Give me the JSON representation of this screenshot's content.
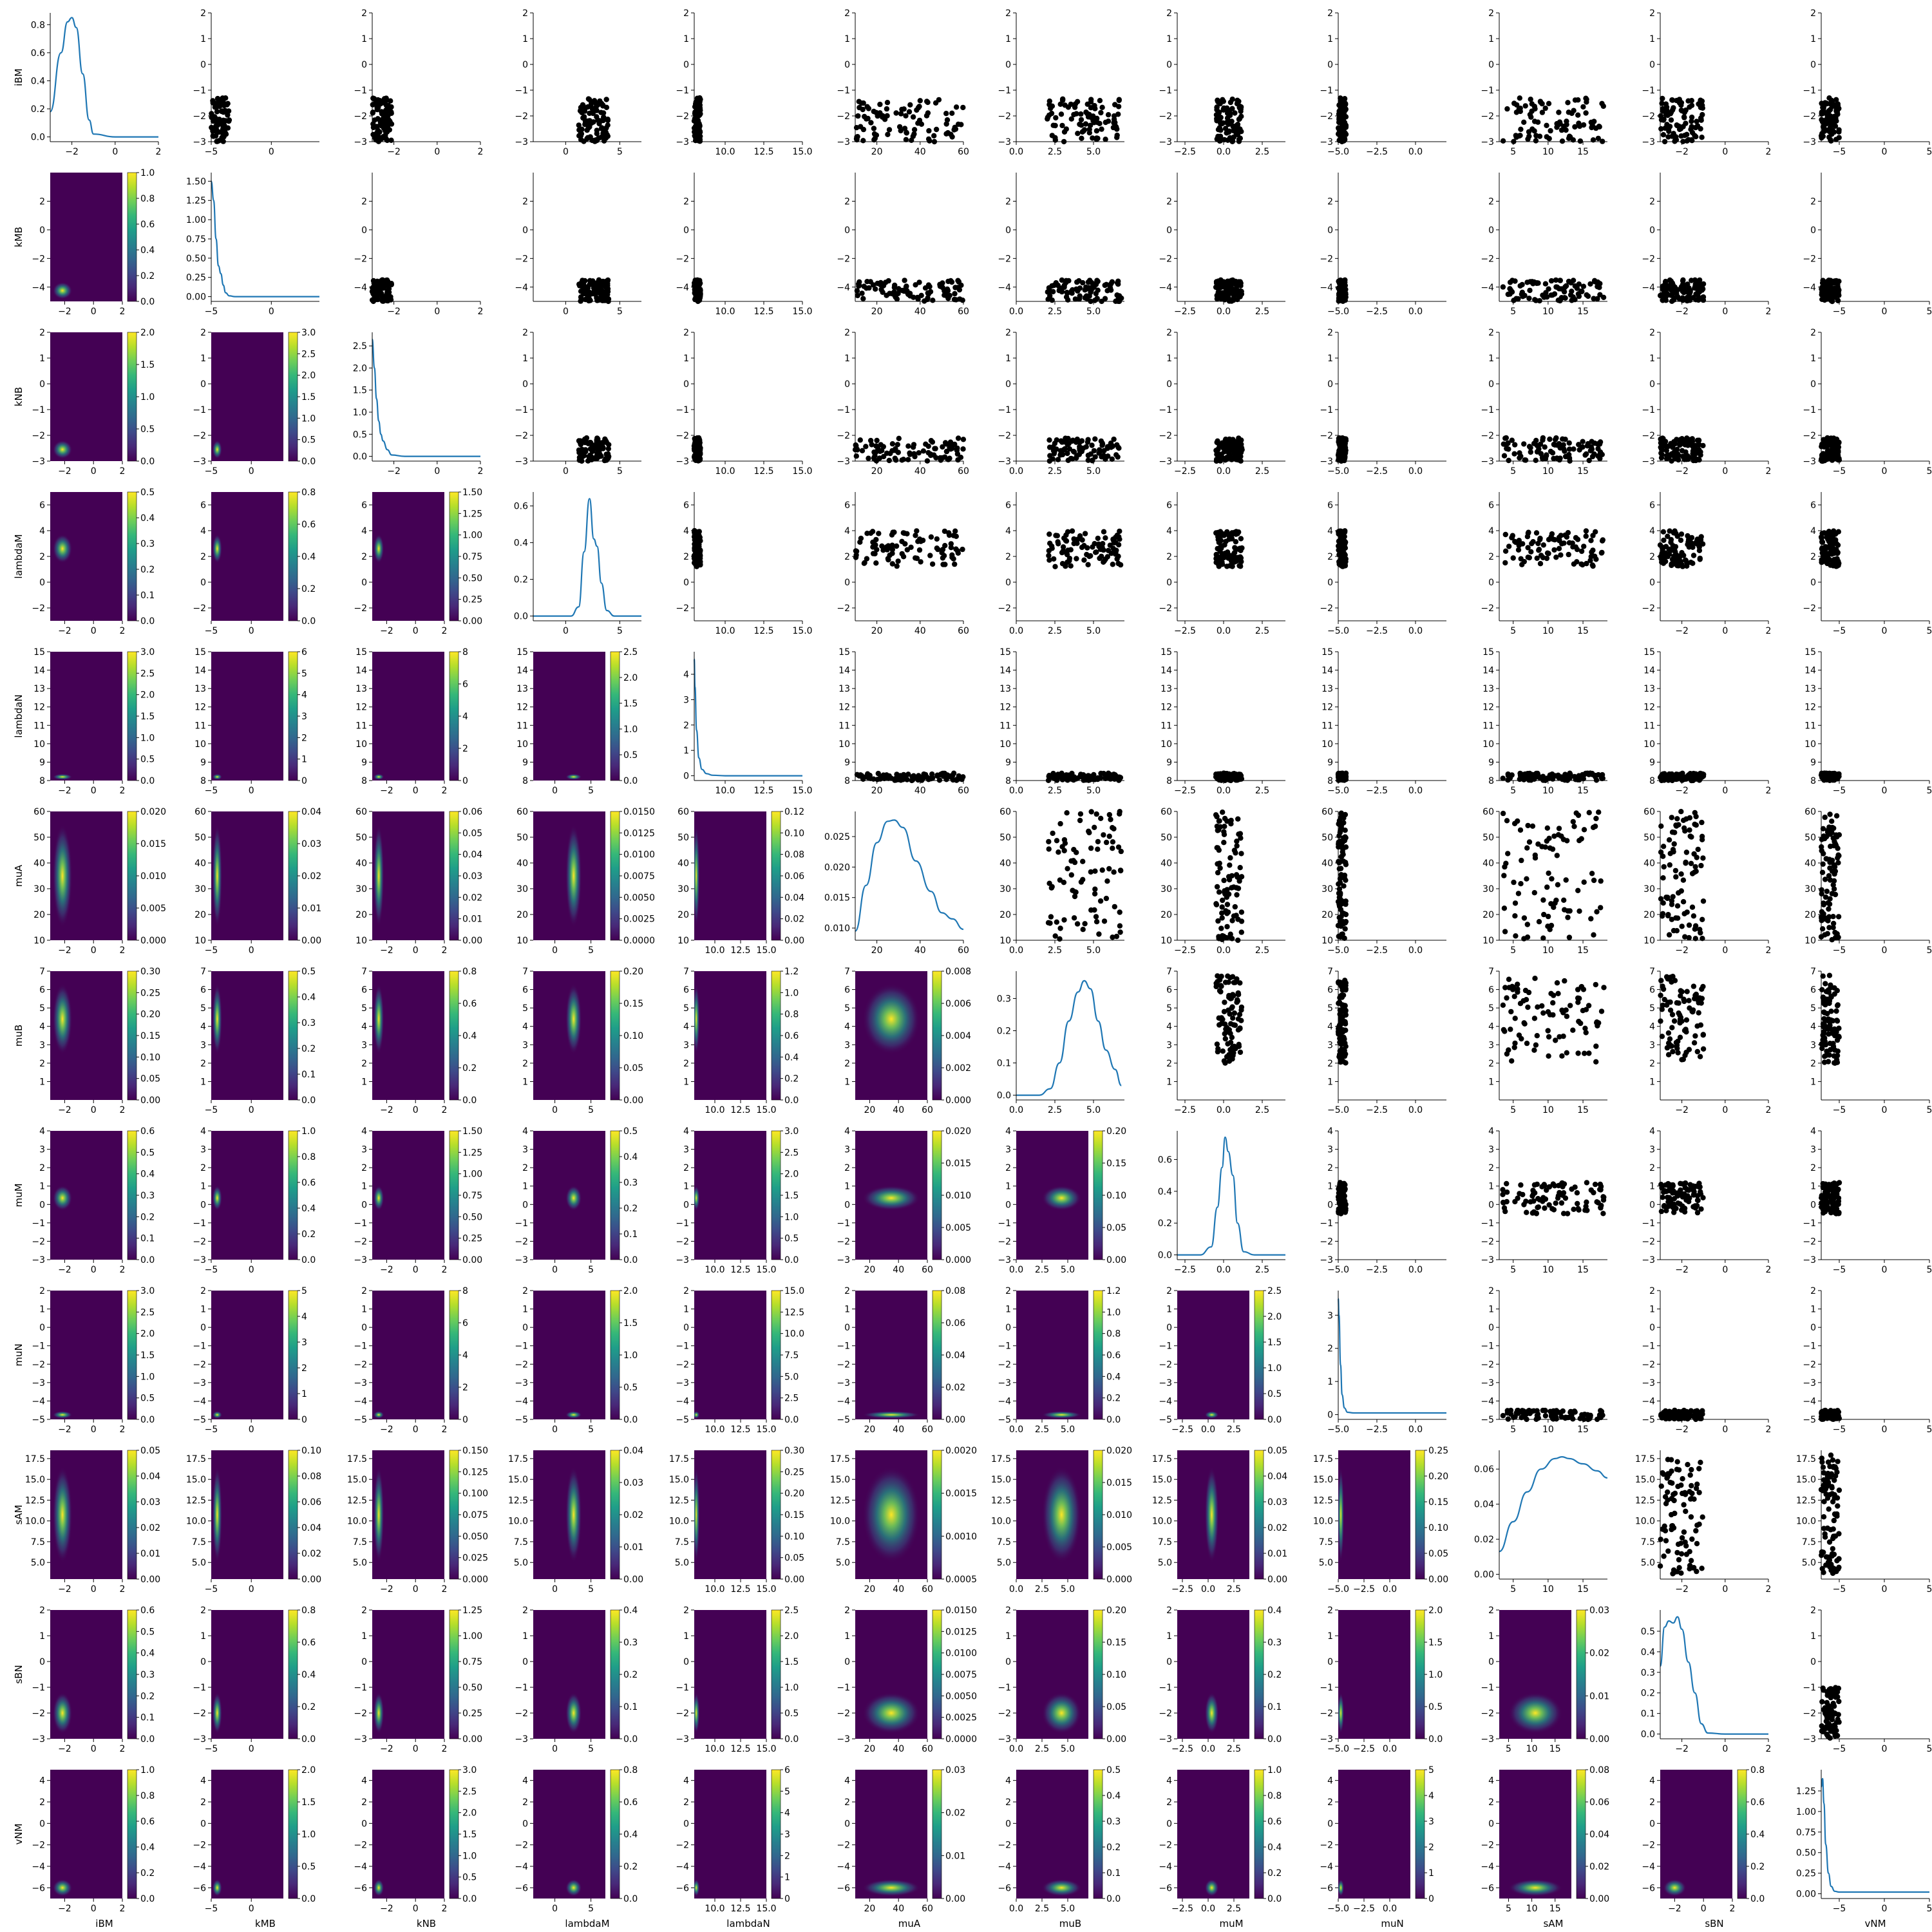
{
  "chart_data": {
    "type": "pairplot",
    "description_layout": "12x12 pair grid; diagonal = 1D KDE curves, upper triangle = scatter, lower triangle = 2D KDE heatmaps with colorbars",
    "variables": [
      "iBM",
      "kMB",
      "kNB",
      "lambdaM",
      "lambdaN",
      "muA",
      "muB",
      "muM",
      "muN",
      "sAM",
      "sBN",
      "vNM"
    ],
    "colormap": "viridis",
    "kde_color": "#1f77b4",
    "scatter_color": "#000000",
    "viridis": [
      "#440154",
      "#482878",
      "#3e4989",
      "#31688e",
      "#26828e",
      "#1f9e89",
      "#35b779",
      "#6ece58",
      "#b5de2b",
      "#fde725"
    ],
    "ranges": {
      "iBM": [
        -3,
        2
      ],
      "kMB": [
        -5,
        4
      ],
      "kNB": [
        -3,
        2
      ],
      "lambdaM": [
        -3,
        7
      ],
      "lambdaN": [
        8,
        15
      ],
      "muA": [
        10,
        60
      ],
      "muB": [
        0,
        7
      ],
      "muM": [
        -3,
        4
      ],
      "muN": [
        -5,
        2
      ],
      "sAM": [
        3,
        18.5
      ],
      "sBN": [
        -3,
        2
      ],
      "vNM": [
        -7,
        5
      ]
    },
    "data_ranges": {
      "iBM": [
        -3,
        -1.3
      ],
      "kMB": [
        -5,
        -3.5
      ],
      "kNB": [
        -3,
        -2.1
      ],
      "lambdaM": [
        1.2,
        4.0
      ],
      "lambdaN": [
        8.0,
        8.4
      ],
      "muA": [
        10,
        60
      ],
      "muB": [
        2.0,
        6.8
      ],
      "muM": [
        -0.5,
        1.2
      ],
      "muN": [
        -5,
        -4.5
      ],
      "sAM": [
        3.5,
        18.0
      ],
      "sBN": [
        -3,
        -1
      ],
      "vNM": [
        -7,
        -5
      ]
    },
    "ticks": {
      "iBM": [
        -2,
        0,
        2
      ],
      "kMB": [
        -5,
        0
      ],
      "kNB": [
        -2,
        0,
        2
      ],
      "lambdaM": [
        0,
        5
      ],
      "lambdaN": [
        10.0,
        12.5,
        15.0
      ],
      "muA": [
        20,
        40,
        60
      ],
      "muB": [
        0.0,
        2.5,
        5.0
      ],
      "muM": [
        -2.5,
        0.0,
        2.5
      ],
      "muN": [
        -5.0,
        -2.5,
        0.0
      ],
      "sAM": [
        5,
        10,
        15
      ],
      "sBN": [
        -2,
        0,
        2
      ],
      "vNM": [
        -5,
        0,
        5
      ]
    },
    "tick_labels": {
      "iBM": [
        "−2",
        "0",
        "2"
      ],
      "kMB": [
        "−5",
        "0"
      ],
      "kNB": [
        "−2",
        "0",
        "2"
      ],
      "lambdaM": [
        "0",
        "5"
      ],
      "lambdaN": [
        "10.0",
        "12.5",
        "15.0"
      ],
      "muA": [
        "20",
        "40",
        "60"
      ],
      "muB": [
        "0.0",
        "2.5",
        "5.0"
      ],
      "muM": [
        "−2.5",
        "0.0",
        "2.5"
      ],
      "muN": [
        "−5.0",
        "−2.5",
        "0.0"
      ],
      "sAM": [
        "5",
        "10",
        "15"
      ],
      "sBN": [
        "−2",
        "0",
        "2"
      ],
      "vNM": [
        "−5",
        "0",
        "5"
      ]
    },
    "yticks": {
      "iBM": [
        -3,
        -2,
        -1,
        0,
        1,
        2
      ],
      "kMB": [
        -4,
        -2,
        0,
        2
      ],
      "kNB": [
        -3,
        -2,
        -1,
        0,
        1,
        2
      ],
      "lambdaM": [
        -2,
        0,
        2,
        4,
        6
      ],
      "lambdaN": [
        8,
        9,
        10,
        11,
        12,
        13,
        14,
        15
      ],
      "muA": [
        10,
        20,
        30,
        40,
        50,
        60
      ],
      "muB": [
        1,
        2,
        3,
        4,
        5,
        6,
        7
      ],
      "muM": [
        -3,
        -2,
        -1,
        0,
        1,
        2,
        3,
        4
      ],
      "muN": [
        -5,
        -4,
        -3,
        -2,
        -1,
        0,
        1,
        2
      ],
      "sAM": [
        5.0,
        7.5,
        10.0,
        12.5,
        15.0,
        17.5
      ],
      "sBN": [
        -3,
        -2,
        -1,
        0,
        1,
        2
      ],
      "vNM": [
        -6,
        -4,
        -2,
        0,
        2,
        4
      ]
    },
    "ytick_labels": {
      "iBM": [
        "−3",
        "−2",
        "−1",
        "0",
        "1",
        "2"
      ],
      "kMB": [
        "−4",
        "−2",
        "0",
        "2"
      ],
      "kNB": [
        "−3",
        "−2",
        "−1",
        "0",
        "1",
        "2"
      ],
      "lambdaM": [
        "−2",
        "0",
        "2",
        "4",
        "6"
      ],
      "lambdaN": [
        "8",
        "9",
        "10",
        "11",
        "12",
        "13",
        "14",
        "15"
      ],
      "muA": [
        "10",
        "20",
        "30",
        "40",
        "50",
        "60"
      ],
      "muB": [
        "1",
        "2",
        "3",
        "4",
        "5",
        "6",
        "7"
      ],
      "muM": [
        "−3",
        "−2",
        "−1",
        "0",
        "1",
        "2",
        "3",
        "4"
      ],
      "muN": [
        "−5",
        "−4",
        "−3",
        "−2",
        "−1",
        "0",
        "1",
        "2"
      ],
      "sAM": [
        "5.0",
        "7.5",
        "10.0",
        "12.5",
        "15.0",
        "17.5"
      ],
      "sBN": [
        "−3",
        "−2",
        "−1",
        "0",
        "1",
        "2"
      ],
      "vNM": [
        "−6",
        "−4",
        "−2",
        "0",
        "2",
        "4"
      ]
    },
    "diagonal_kde": [
      {
        "var": "iBM",
        "ymax": 0.85,
        "yticks": [
          0.0,
          0.2,
          0.4,
          0.6,
          0.8
        ],
        "ytick_labels": [
          "0.0",
          "0.2",
          "0.4",
          "0.6",
          "0.8"
        ],
        "x": [
          -3,
          -2.5,
          -2.2,
          -2.0,
          -1.8,
          -1.5,
          -1.2,
          -1.0,
          0,
          2
        ],
        "y": [
          0.18,
          0.6,
          0.82,
          0.85,
          0.78,
          0.45,
          0.12,
          0.02,
          0.0,
          0.0
        ]
      },
      {
        "var": "kMB",
        "ymax": 1.55,
        "yticks": [
          0.0,
          0.25,
          0.5,
          0.75,
          1.0,
          1.25,
          1.5
        ],
        "ytick_labels": [
          "0.00",
          "0.25",
          "0.50",
          "0.75",
          "1.00",
          "1.25",
          "1.50"
        ],
        "x": [
          -5,
          -4.8,
          -4.6,
          -4.4,
          -4.2,
          -4.0,
          -3.8,
          -3.5,
          -3.0,
          4
        ],
        "y": [
          1.5,
          1.25,
          0.75,
          0.4,
          0.3,
          0.15,
          0.05,
          0.01,
          0.0,
          0.0
        ]
      },
      {
        "var": "kNB",
        "ymax": 2.7,
        "yticks": [
          0.0,
          0.5,
          1.0,
          1.5,
          2.0,
          2.5
        ],
        "ytick_labels": [
          "0.0",
          "0.5",
          "1.0",
          "1.5",
          "2.0",
          "2.5"
        ],
        "x": [
          -3,
          -2.9,
          -2.8,
          -2.7,
          -2.6,
          -2.5,
          -2.3,
          -2.1,
          -1.5,
          2
        ],
        "y": [
          2.65,
          2.0,
          1.3,
          0.8,
          0.5,
          0.35,
          0.15,
          0.03,
          0.0,
          0.0
        ]
      },
      {
        "var": "lambdaM",
        "ymax": 0.65,
        "yticks": [
          0.0,
          0.2,
          0.4,
          0.6
        ],
        "ytick_labels": [
          "0.0",
          "0.2",
          "0.4",
          "0.6"
        ],
        "x": [
          -3,
          0.5,
          1.2,
          1.7,
          2.2,
          2.6,
          2.9,
          3.3,
          3.8,
          4.5,
          7
        ],
        "y": [
          0.0,
          0.0,
          0.05,
          0.35,
          0.64,
          0.42,
          0.38,
          0.18,
          0.03,
          0.0,
          0.0
        ]
      },
      {
        "var": "lambdaN",
        "ymax": 4.7,
        "yticks": [
          0,
          1,
          2,
          3,
          4
        ],
        "ytick_labels": [
          "0",
          "1",
          "2",
          "3",
          "4"
        ],
        "x": [
          8,
          8.05,
          8.15,
          8.3,
          8.5,
          8.8,
          9.2,
          10,
          15
        ],
        "y": [
          4.6,
          3.5,
          1.8,
          0.7,
          0.25,
          0.08,
          0.02,
          0.0,
          0.0
        ]
      },
      {
        "var": "muA",
        "ymax": 0.028,
        "yticks": [
          0.01,
          0.015,
          0.02,
          0.025
        ],
        "ytick_labels": [
          "0.010",
          "0.015",
          "0.020",
          "0.025"
        ],
        "ymin": 0.008,
        "x": [
          10,
          15,
          20,
          25,
          28,
          32,
          38,
          45,
          50,
          55,
          60
        ],
        "y": [
          0.0095,
          0.017,
          0.024,
          0.0275,
          0.0277,
          0.0265,
          0.021,
          0.016,
          0.0125,
          0.0115,
          0.0098
        ]
      },
      {
        "var": "muB",
        "ymax": 0.37,
        "yticks": [
          0.0,
          0.1,
          0.2,
          0.3
        ],
        "ytick_labels": [
          "0.0",
          "0.1",
          "0.2",
          "0.3"
        ],
        "x": [
          0,
          1.5,
          2.2,
          2.8,
          3.4,
          4.0,
          4.4,
          4.8,
          5.3,
          5.8,
          6.4,
          6.8
        ],
        "y": [
          0.0,
          0.0,
          0.02,
          0.1,
          0.23,
          0.32,
          0.355,
          0.33,
          0.23,
          0.14,
          0.08,
          0.03
        ]
      },
      {
        "var": "muM",
        "ymax": 0.75,
        "yticks": [
          0.0,
          0.2,
          0.4,
          0.6
        ],
        "ytick_labels": [
          "0.0",
          "0.2",
          "0.4",
          "0.6"
        ],
        "x": [
          -3,
          -1.5,
          -0.8,
          -0.4,
          -0.1,
          0.1,
          0.3,
          0.6,
          0.9,
          1.3,
          2,
          4
        ],
        "y": [
          0.0,
          0.0,
          0.05,
          0.3,
          0.55,
          0.74,
          0.65,
          0.5,
          0.2,
          0.02,
          0.0,
          0.0
        ]
      },
      {
        "var": "muN",
        "ymax": 3.6,
        "yticks": [
          0,
          1,
          2,
          3
        ],
        "ytick_labels": [
          "0",
          "1",
          "2",
          "3"
        ],
        "x": [
          -5,
          -4.95,
          -4.85,
          -4.75,
          -4.6,
          -4.4,
          -4.0,
          2
        ],
        "y": [
          3.5,
          3.0,
          1.5,
          0.6,
          0.2,
          0.07,
          0.05,
          0.05
        ]
      },
      {
        "var": "sAM",
        "ymax": 0.068,
        "yticks": [
          0.0,
          0.02,
          0.04,
          0.06
        ],
        "ytick_labels": [
          "0.00",
          "0.02",
          "0.04",
          "0.06"
        ],
        "x": [
          3,
          5,
          7,
          9,
          11,
          12,
          13,
          15,
          17,
          18.5
        ],
        "y": [
          0.013,
          0.03,
          0.047,
          0.06,
          0.066,
          0.067,
          0.066,
          0.063,
          0.059,
          0.055
        ]
      },
      {
        "var": "sBN",
        "ymax": 0.58,
        "yticks": [
          0.0,
          0.1,
          0.2,
          0.3,
          0.4,
          0.5
        ],
        "ytick_labels": [
          "0.0",
          "0.1",
          "0.2",
          "0.3",
          "0.4",
          "0.5"
        ],
        "x": [
          -3,
          -2.8,
          -2.6,
          -2.4,
          -2.2,
          -2.0,
          -1.7,
          -1.4,
          -1.1,
          -0.8,
          0,
          2
        ],
        "y": [
          0.33,
          0.52,
          0.55,
          0.54,
          0.57,
          0.51,
          0.35,
          0.2,
          0.05,
          0.005,
          0.0,
          0.0
        ]
      },
      {
        "var": "vNM",
        "ymax": 1.45,
        "yticks": [
          0.0,
          0.25,
          0.5,
          0.75,
          1.0,
          1.25
        ],
        "ytick_labels": [
          "0.00",
          "0.25",
          "0.50",
          "0.75",
          "1.00",
          "1.25"
        ],
        "x": [
          -7,
          -6.85,
          -6.7,
          -6.5,
          -6.2,
          -5.9,
          -5.5,
          -5,
          5
        ],
        "y": [
          1.3,
          1.4,
          1.1,
          0.6,
          0.25,
          0.09,
          0.03,
          0.02,
          0.02
        ]
      }
    ],
    "colorbar_max": [
      [
        null,
        1.0,
        2.0,
        0.5,
        3.0,
        0.02,
        0.3,
        0.6,
        3.0,
        0.05,
        0.6,
        1.0
      ],
      [
        null,
        null,
        3.0,
        0.8,
        6.0,
        0.04,
        0.5,
        1.0,
        5.0,
        0.1,
        0.8,
        2.0
      ],
      [
        null,
        null,
        null,
        1.5,
        8.0,
        0.06,
        0.8,
        1.5,
        8.0,
        0.15,
        1.25,
        3.0
      ],
      [
        null,
        null,
        null,
        null,
        2.5,
        0.015,
        0.2,
        0.5,
        2.0,
        0.04,
        0.4,
        0.8
      ],
      [
        null,
        null,
        null,
        null,
        null,
        0.12,
        1.2,
        3.0,
        15.0,
        0.3,
        2.5,
        6.0
      ],
      [
        null,
        null,
        null,
        null,
        null,
        null,
        0.008,
        0.02,
        0.08,
        0.002,
        0.015,
        0.03
      ],
      [
        null,
        null,
        null,
        null,
        null,
        null,
        null,
        0.2,
        1.2,
        0.02,
        0.2,
        0.5
      ],
      [
        null,
        null,
        null,
        null,
        null,
        null,
        null,
        null,
        2.5,
        0.05,
        0.4,
        1.0
      ],
      [
        null,
        null,
        null,
        null,
        null,
        null,
        null,
        null,
        null,
        0.25,
        2.0,
        5.0
      ],
      [
        null,
        null,
        null,
        null,
        null,
        null,
        null,
        null,
        null,
        null,
        0.03,
        0.08
      ],
      [
        null,
        null,
        null,
        null,
        null,
        null,
        null,
        null,
        null,
        null,
        null,
        0.8
      ]
    ],
    "colorbar_ticks": {
      "1.0": [
        "0.0",
        "0.2",
        "0.4",
        "0.6",
        "0.8",
        "1.0"
      ],
      "2.0": [
        "0.0",
        "0.5",
        "1.0",
        "1.5",
        "2.0"
      ],
      "0.5": [
        "0.0",
        "0.1",
        "0.2",
        "0.3",
        "0.4",
        "0.5"
      ],
      "3.0": [
        "0.0",
        "0.5",
        "1.0",
        "1.5",
        "2.0",
        "2.5",
        "3.0"
      ],
      "0.02": [
        "0.000",
        "0.005",
        "0.010",
        "0.015",
        "0.020"
      ],
      "0.3": [
        "0.00",
        "0.05",
        "0.10",
        "0.15",
        "0.20",
        "0.25",
        "0.30"
      ],
      "0.6": [
        "0.0",
        "0.1",
        "0.2",
        "0.3",
        "0.4",
        "0.5",
        "0.6"
      ],
      "0.05": [
        "0.00",
        "0.01",
        "0.02",
        "0.03",
        "0.04",
        "0.05"
      ],
      "6.0": [
        "0",
        "1",
        "2",
        "3",
        "4",
        "5",
        "6"
      ],
      "0.04": [
        "0.00",
        "0.01",
        "0.02",
        "0.03",
        "0.04"
      ],
      "0.1": [
        "0.00",
        "0.02",
        "0.04",
        "0.06",
        "0.08",
        "0.10"
      ],
      "0.8": [
        "0.0",
        "0.2",
        "0.4",
        "0.6",
        "0.8"
      ],
      "5.0": [
        "0",
        "1",
        "2",
        "3",
        "4",
        "5"
      ],
      "8.0": [
        "0",
        "2",
        "4",
        "6",
        "8"
      ],
      "0.06": [
        "0.00",
        "0.01",
        "0.02",
        "0.03",
        "0.04",
        "0.05",
        "0.06"
      ],
      "1.5": [
        "0.00",
        "0.25",
        "0.50",
        "0.75",
        "1.00",
        "1.25",
        "1.50"
      ],
      "0.15": [
        "0.000",
        "0.025",
        "0.050",
        "0.075",
        "0.100",
        "0.125",
        "0.150"
      ],
      "1.25": [
        "0.00",
        "0.25",
        "0.50",
        "0.75",
        "1.00",
        "1.25"
      ],
      "2.5": [
        "0.0",
        "0.5",
        "1.0",
        "1.5",
        "2.0",
        "2.5"
      ],
      "0.015": [
        "0.0000",
        "0.0025",
        "0.0050",
        "0.0075",
        "0.0100",
        "0.0125",
        "0.0150"
      ],
      "0.2": [
        "0.00",
        "0.05",
        "0.10",
        "0.15",
        "0.20"
      ],
      "0.12": [
        "0.00",
        "0.02",
        "0.04",
        "0.06",
        "0.08",
        "0.10",
        "0.12"
      ],
      "1.2": [
        "0.0",
        "0.2",
        "0.4",
        "0.6",
        "0.8",
        "1.0",
        "1.2"
      ],
      "15.0": [
        "0.0",
        "2.5",
        "5.0",
        "7.5",
        "10.0",
        "12.5",
        "15.0"
      ],
      "0.008": [
        "0.000",
        "0.002",
        "0.004",
        "0.006",
        "0.008"
      ],
      "0.08": [
        "0.00",
        "0.02",
        "0.04",
        "0.06",
        "0.08"
      ],
      "0.002": [
        "0.0005",
        "0.0010",
        "0.0015",
        "0.0020"
      ],
      "0.03": [
        "0.00",
        "0.01",
        "0.02",
        "0.03"
      ],
      "0.4": [
        "0.0",
        "0.1",
        "0.2",
        "0.3",
        "0.4"
      ],
      "0.25": [
        "0.00",
        "0.05",
        "0.10",
        "0.15",
        "0.20",
        "0.25"
      ]
    }
  }
}
